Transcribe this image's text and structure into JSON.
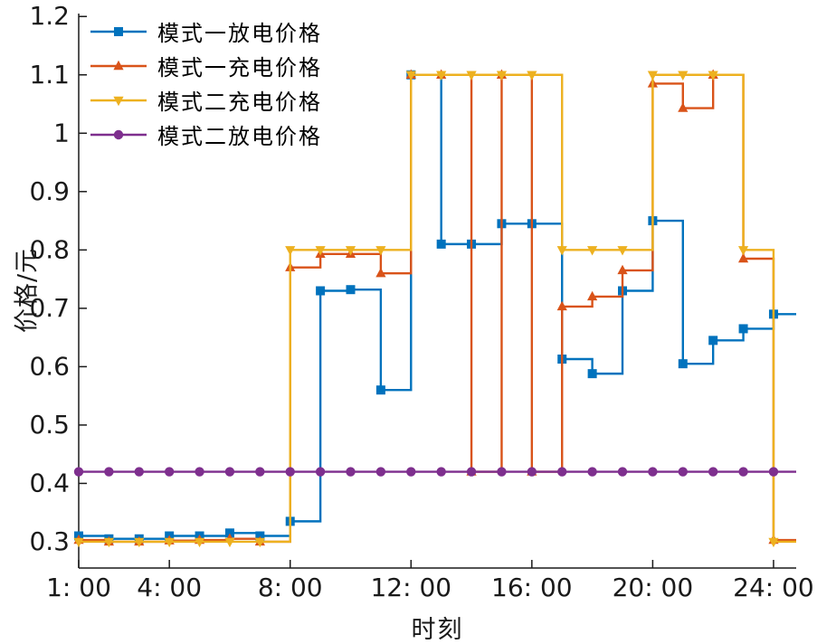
{
  "chart_data": {
    "type": "line",
    "step": true,
    "title": "",
    "xlabel": "时刻",
    "ylabel": "价格/元",
    "xlim": [
      1,
      24.75
    ],
    "ylim": [
      0.255,
      1.205
    ],
    "grid": false,
    "legend_position": "top-left",
    "x": [
      1,
      2,
      3,
      4,
      5,
      6,
      7,
      8,
      9,
      10,
      11,
      12,
      13,
      14,
      15,
      16,
      17,
      18,
      19,
      20,
      21,
      22,
      23,
      24
    ],
    "x_tick_hours": [
      1,
      4,
      8,
      12,
      16,
      20,
      24
    ],
    "x_tick_labels": [
      "1: 00",
      "4: 00",
      "8: 00",
      "12: 00",
      "16: 00",
      "20: 00",
      "24: 00"
    ],
    "y_ticks": [
      0.3,
      0.4,
      0.5,
      0.6,
      0.7,
      0.8,
      0.9,
      1,
      1.1,
      1.2
    ],
    "y_tick_labels": [
      "0.3",
      "0.4",
      "0.5",
      "0.6",
      "0.7",
      "0.8",
      "0.9",
      "1",
      "1.1",
      "1.2"
    ],
    "axis_color": "#1a1a1a",
    "series": [
      {
        "name": "模式一放电价格",
        "color": "#0072BD",
        "marker": "square",
        "values": [
          0.31,
          0.305,
          0.305,
          0.31,
          0.31,
          0.315,
          0.31,
          0.335,
          0.73,
          0.732,
          0.56,
          1.1,
          0.81,
          0.81,
          0.845,
          0.845,
          0.613,
          0.588,
          0.73,
          0.85,
          0.605,
          0.645,
          0.665,
          0.69
        ]
      },
      {
        "name": "模式一充电价格",
        "color": "#D95319",
        "marker": "triangle-up",
        "values": [
          0.303,
          0.3,
          0.3,
          0.302,
          0.303,
          0.305,
          0.3,
          0.77,
          0.793,
          0.793,
          0.76,
          1.1,
          1.1,
          0.42,
          1.1,
          0.42,
          0.703,
          0.72,
          0.765,
          1.085,
          1.043,
          1.1,
          0.785,
          0.303
        ]
      },
      {
        "name": "模式二充电价格",
        "color": "#EDB120",
        "marker": "triangle-down",
        "values": [
          0.3,
          0.3,
          0.3,
          0.3,
          0.3,
          0.3,
          0.3,
          0.8,
          0.8,
          0.8,
          0.8,
          1.1,
          1.1,
          1.1,
          1.1,
          1.1,
          0.8,
          0.8,
          0.8,
          1.1,
          1.1,
          1.1,
          0.8,
          0.3
        ]
      },
      {
        "name": "模式二放电价格",
        "color": "#7E2F8E",
        "marker": "circle",
        "values": [
          0.42,
          0.42,
          0.42,
          0.42,
          0.42,
          0.42,
          0.42,
          0.42,
          0.42,
          0.42,
          0.42,
          0.42,
          0.42,
          0.42,
          0.42,
          0.42,
          0.42,
          0.42,
          0.42,
          0.42,
          0.42,
          0.42,
          0.42,
          0.42
        ]
      }
    ]
  }
}
